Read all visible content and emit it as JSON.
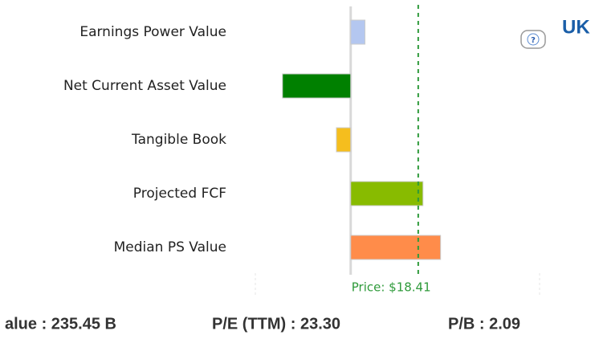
{
  "chart_data": {
    "type": "hbar",
    "categories": [
      "Earnings Power Value",
      "Net Current Asset Value",
      "Tangible Book",
      "Projected FCF",
      "Median PS Value"
    ],
    "values": [
      3.9,
      -18.6,
      -3.9,
      19.7,
      24.5
    ],
    "colors": [
      "#b4c7f0",
      "#008000",
      "#f5be1e",
      "#88bb00",
      "#ff8c4a"
    ],
    "xlim": [
      -26,
      51.5
    ],
    "price_line": {
      "value": 18.41,
      "label": "Price: $18.41"
    }
  },
  "header": {
    "title": "UK"
  },
  "stats": [
    "alue : 235.45 B",
    "P/E (TTM) : 23.30",
    "P/B : 2.09"
  ]
}
